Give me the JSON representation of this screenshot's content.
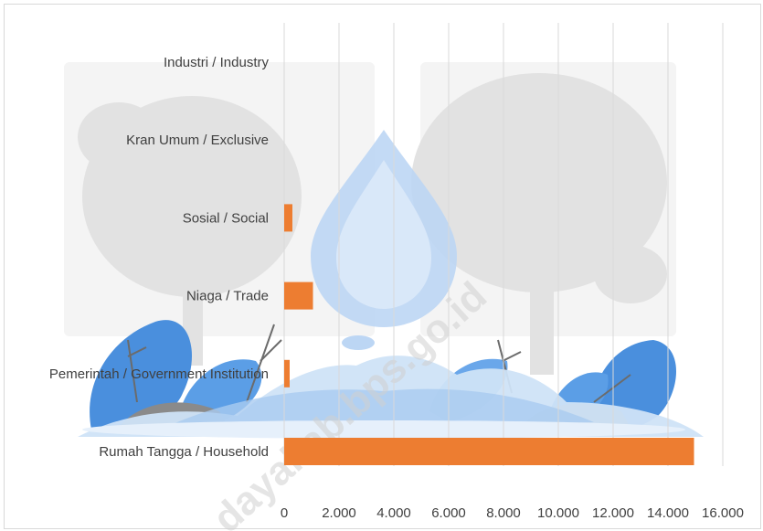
{
  "chart_data": {
    "type": "bar",
    "orientation": "horizontal",
    "categories": [
      "Industri / Industry",
      "Kran Umum / Exclusive",
      "Sosial / Social",
      "Niaga / Trade",
      "Pemerintah / Government Institution",
      "Rumah Tangga / Household"
    ],
    "values": [
      0,
      0,
      300,
      1050,
      200,
      14950
    ],
    "xlim": [
      0,
      16000
    ],
    "xticks": [
      "0",
      "2.000",
      "4.000",
      "6.000",
      "8.000",
      "10.000",
      "12.000",
      "14.000",
      "16.000"
    ],
    "grid": "vertical",
    "legend": "none",
    "bar_color": "#ED7D31",
    "title": "",
    "xlabel": "",
    "ylabel": ""
  },
  "watermark": "dayakab.bps.go.id",
  "colors": {
    "grid": "#d9d9d9",
    "water_light": "#cfe3f7",
    "water_mid": "#8fbbea",
    "leaf_blue": "#4a8fdd",
    "tree_gray": "#dcdcdc"
  }
}
